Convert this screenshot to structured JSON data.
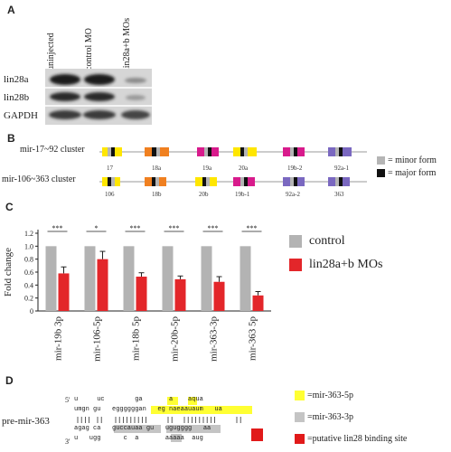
{
  "panels": {
    "A": {
      "letter": "A",
      "columns": [
        "uninjected",
        "control MO",
        "lin28a+b MOs"
      ],
      "rows": [
        "lin28a",
        "lin28b",
        "GAPDH"
      ]
    },
    "B": {
      "letter": "B",
      "clusters": [
        {
          "name": "mir-17~92 cluster",
          "mirs": [
            "17",
            "18a",
            "19a",
            "20a",
            "19b-2",
            "92a-1"
          ]
        },
        {
          "name": "mir-106~363 cluster",
          "mirs": [
            "106",
            "18b",
            "20b",
            "19b-1",
            "92a-2",
            "363"
          ]
        }
      ],
      "legend": [
        {
          "label": "= minor form",
          "color": "#b5b5b5"
        },
        {
          "label": "= major form",
          "color": "#111111"
        }
      ]
    },
    "C": {
      "letter": "C",
      "ylabel": "Fold change",
      "significance": [
        "***",
        "*",
        "***",
        "***",
        "***",
        "***"
      ]
    },
    "D": {
      "letter": "D",
      "label": "pre-mir-363",
      "five_prime": "5'",
      "three_prime": "3'",
      "top_loop": "u     uc        ga       a    aqua",
      "top_strand": "umgn gu   eggggggan   eg naeaauaum   ua",
      "bottom_strand": "agag ca   guccauaa gu   ugugggg   aa",
      "bottom_loop": "u   ugg      c  a       aaaaa  aug",
      "legend": [
        {
          "label": "=mir-363-5p",
          "color": "#ffff33"
        },
        {
          "label": "=mir-363-3p",
          "color": "#c4c4c4"
        },
        {
          "label": "=putative lin28 binding site",
          "color": "#e11a1a"
        }
      ]
    }
  },
  "chart_data": {
    "type": "bar",
    "title": "",
    "xlabel": "",
    "ylabel": "Fold change",
    "ylim": [
      0,
      1.2
    ],
    "yticks": [
      "0",
      "0.2",
      "0.4",
      "0.6",
      "0.8",
      "1.0",
      "1.2"
    ],
    "categories": [
      "mir-19b 3p",
      "mir-106-5p",
      "mir-18b 5p",
      "mir-20b-5p",
      "mir-363-3p",
      "mir-363 5p"
    ],
    "series": [
      {
        "name": "control",
        "color": "#b3b3b3",
        "values": [
          1.0,
          1.0,
          1.0,
          1.0,
          1.0,
          1.0
        ]
      },
      {
        "name": "lin28a+b MOs",
        "color": "#e3262a",
        "values": [
          0.58,
          0.8,
          0.53,
          0.49,
          0.45,
          0.24
        ],
        "errors": [
          0.1,
          0.12,
          0.06,
          0.05,
          0.08,
          0.06
        ]
      }
    ],
    "legend": "right",
    "grid": false
  }
}
